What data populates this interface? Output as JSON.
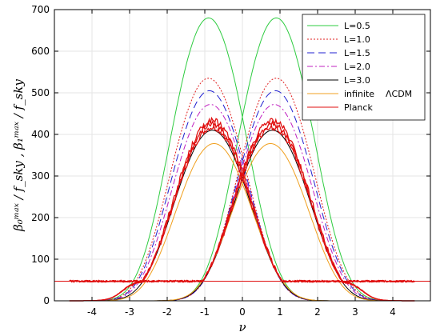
{
  "chart_data": {
    "type": "line",
    "xlabel": "ν",
    "ylabel": "β₀ᵐᵃˣ / f_sky , β₁ᵐᵃˣ / f_sky",
    "xlim": [
      -5,
      5
    ],
    "ylim": [
      0,
      700
    ],
    "x_ticks": [
      -4,
      -3,
      -2,
      -1,
      0,
      1,
      2,
      3,
      4
    ],
    "x_tick_labels": [
      "-4",
      "-3",
      "-2",
      "-1",
      "0",
      "1",
      "2",
      "3",
      "4"
    ],
    "y_ticks": [
      0,
      100,
      200,
      300,
      400,
      500,
      600,
      700
    ],
    "y_tick_labels": [
      "0",
      "100",
      "200",
      "300",
      "400",
      "500",
      "600",
      "700"
    ],
    "grid": true,
    "legend_position": "top-right",
    "legend_extra_label": "ΛCDM",
    "baseline_level": 47,
    "series": [
      {
        "name": "L=0.5",
        "color": "#2ecc40",
        "dash": "solid",
        "peak": 680,
        "peak_nu": 0.9,
        "sigma": 1.0
      },
      {
        "name": "L=1.0",
        "color": "#e02020",
        "dash": "dotted",
        "peak": 535,
        "peak_nu": 0.9,
        "sigma": 1.0
      },
      {
        "name": "L=1.5",
        "color": "#2020d0",
        "dash": "dashed",
        "peak": 505,
        "peak_nu": 0.88,
        "sigma": 1.0
      },
      {
        "name": "L=2.0",
        "color": "#c020c0",
        "dash": "dashdot",
        "peak": 472,
        "peak_nu": 0.85,
        "sigma": 1.0
      },
      {
        "name": "L=3.0",
        "color": "#000000",
        "dash": "solid",
        "peak": 410,
        "peak_nu": 0.8,
        "sigma": 1.0
      },
      {
        "name": "infinite",
        "color": "#f0a020",
        "dash": "solid",
        "peak": 378,
        "peak_nu": 0.75,
        "sigma": 1.0
      },
      {
        "name": "Planck",
        "color": "#e01010",
        "dash": "solid",
        "peak": 425,
        "peak_nu": 0.8,
        "sigma": 1.0
      }
    ]
  }
}
